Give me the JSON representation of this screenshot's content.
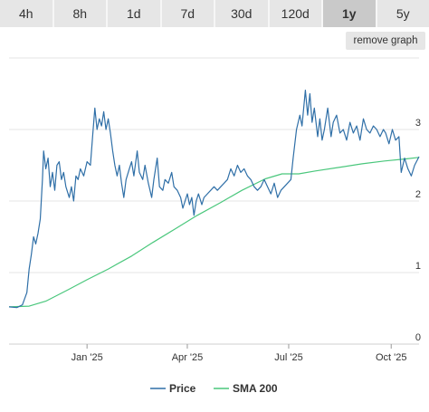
{
  "tabs": [
    {
      "label": "4h",
      "active": false
    },
    {
      "label": "8h",
      "active": false
    },
    {
      "label": "1d",
      "active": false
    },
    {
      "label": "7d",
      "active": false
    },
    {
      "label": "30d",
      "active": false
    },
    {
      "label": "120d",
      "active": false
    },
    {
      "label": "1y",
      "active": true
    },
    {
      "label": "5y",
      "active": false
    }
  ],
  "remove_graph_label": "remove graph",
  "chart_data": {
    "type": "line",
    "xlim": [
      "2024-10-23",
      "2025-10-26"
    ],
    "ylim": [
      0,
      4
    ],
    "grid": true,
    "legend_position": "bottom-center",
    "x_ticks": [
      {
        "label": "Jan '25",
        "date": "2025-01-01"
      },
      {
        "label": "Apr '25",
        "date": "2025-04-01"
      },
      {
        "label": "Jul '25",
        "date": "2025-07-01"
      },
      {
        "label": "Oct '25",
        "date": "2025-10-01"
      }
    ],
    "y_ticks": [
      "0",
      "1",
      "2",
      "3"
    ],
    "y_tick_values": [
      0,
      1,
      2,
      3
    ],
    "series": [
      {
        "name": "Price",
        "color": "#2f6fa7",
        "points": [
          [
            "2024-10-23",
            0.52
          ],
          [
            "2024-10-30",
            0.51
          ],
          [
            "2024-11-04",
            0.55
          ],
          [
            "2024-11-08",
            0.72
          ],
          [
            "2024-11-10",
            1.05
          ],
          [
            "2024-11-12",
            1.25
          ],
          [
            "2024-11-14",
            1.5
          ],
          [
            "2024-11-16",
            1.4
          ],
          [
            "2024-11-18",
            1.55
          ],
          [
            "2024-11-20",
            1.75
          ],
          [
            "2024-11-22",
            2.3
          ],
          [
            "2024-11-23",
            2.7
          ],
          [
            "2024-11-25",
            2.45
          ],
          [
            "2024-11-27",
            2.6
          ],
          [
            "2024-11-29",
            2.2
          ],
          [
            "2024-12-01",
            2.4
          ],
          [
            "2024-12-03",
            2.15
          ],
          [
            "2024-12-05",
            2.5
          ],
          [
            "2024-12-07",
            2.55
          ],
          [
            "2024-12-09",
            2.3
          ],
          [
            "2024-12-11",
            2.4
          ],
          [
            "2024-12-13",
            2.2
          ],
          [
            "2024-12-16",
            2.05
          ],
          [
            "2024-12-18",
            2.2
          ],
          [
            "2024-12-20",
            2.0
          ],
          [
            "2024-12-22",
            2.35
          ],
          [
            "2024-12-24",
            2.3
          ],
          [
            "2024-12-26",
            2.45
          ],
          [
            "2024-12-29",
            2.35
          ],
          [
            "2025-01-01",
            2.55
          ],
          [
            "2025-01-04",
            2.5
          ],
          [
            "2025-01-06",
            2.9
          ],
          [
            "2025-01-08",
            3.3
          ],
          [
            "2025-01-10",
            3.0
          ],
          [
            "2025-01-12",
            3.15
          ],
          [
            "2025-01-14",
            3.05
          ],
          [
            "2025-01-16",
            3.25
          ],
          [
            "2025-01-18",
            3.0
          ],
          [
            "2025-01-20",
            3.15
          ],
          [
            "2025-01-22",
            2.95
          ],
          [
            "2025-01-24",
            2.7
          ],
          [
            "2025-01-26",
            2.5
          ],
          [
            "2025-01-28",
            2.35
          ],
          [
            "2025-01-30",
            2.5
          ],
          [
            "2025-02-01",
            2.25
          ],
          [
            "2025-02-03",
            2.05
          ],
          [
            "2025-02-05",
            2.3
          ],
          [
            "2025-02-08",
            2.45
          ],
          [
            "2025-02-10",
            2.55
          ],
          [
            "2025-02-12",
            2.35
          ],
          [
            "2025-02-15",
            2.7
          ],
          [
            "2025-02-17",
            2.4
          ],
          [
            "2025-02-20",
            2.3
          ],
          [
            "2025-02-22",
            2.5
          ],
          [
            "2025-02-25",
            2.25
          ],
          [
            "2025-02-28",
            2.05
          ],
          [
            "2025-03-02",
            2.3
          ],
          [
            "2025-03-05",
            2.6
          ],
          [
            "2025-03-07",
            2.2
          ],
          [
            "2025-03-10",
            2.15
          ],
          [
            "2025-03-12",
            2.3
          ],
          [
            "2025-03-15",
            2.25
          ],
          [
            "2025-03-18",
            2.4
          ],
          [
            "2025-03-20",
            2.2
          ],
          [
            "2025-03-23",
            2.15
          ],
          [
            "2025-03-26",
            2.05
          ],
          [
            "2025-03-28",
            1.9
          ],
          [
            "2025-04-01",
            2.1
          ],
          [
            "2025-04-03",
            1.95
          ],
          [
            "2025-04-05",
            2.05
          ],
          [
            "2025-04-07",
            1.8
          ],
          [
            "2025-04-09",
            2.0
          ],
          [
            "2025-04-11",
            2.1
          ],
          [
            "2025-04-14",
            1.95
          ],
          [
            "2025-04-16",
            2.05
          ],
          [
            "2025-04-19",
            2.1
          ],
          [
            "2025-04-22",
            2.15
          ],
          [
            "2025-04-25",
            2.2
          ],
          [
            "2025-04-28",
            2.15
          ],
          [
            "2025-05-01",
            2.2
          ],
          [
            "2025-05-04",
            2.25
          ],
          [
            "2025-05-07",
            2.3
          ],
          [
            "2025-05-10",
            2.45
          ],
          [
            "2025-05-13",
            2.35
          ],
          [
            "2025-05-16",
            2.5
          ],
          [
            "2025-05-19",
            2.4
          ],
          [
            "2025-05-22",
            2.45
          ],
          [
            "2025-05-25",
            2.35
          ],
          [
            "2025-05-28",
            2.3
          ],
          [
            "2025-05-31",
            2.2
          ],
          [
            "2025-06-03",
            2.15
          ],
          [
            "2025-06-06",
            2.2
          ],
          [
            "2025-06-09",
            2.3
          ],
          [
            "2025-06-12",
            2.2
          ],
          [
            "2025-06-15",
            2.1
          ],
          [
            "2025-06-18",
            2.25
          ],
          [
            "2025-06-21",
            2.05
          ],
          [
            "2025-06-24",
            2.15
          ],
          [
            "2025-06-27",
            2.2
          ],
          [
            "2025-06-30",
            2.25
          ],
          [
            "2025-07-03",
            2.3
          ],
          [
            "2025-07-05",
            2.6
          ],
          [
            "2025-07-08",
            3.0
          ],
          [
            "2025-07-11",
            3.2
          ],
          [
            "2025-07-13",
            3.05
          ],
          [
            "2025-07-16",
            3.55
          ],
          [
            "2025-07-18",
            3.2
          ],
          [
            "2025-07-20",
            3.5
          ],
          [
            "2025-07-22",
            3.1
          ],
          [
            "2025-07-24",
            3.3
          ],
          [
            "2025-07-27",
            2.9
          ],
          [
            "2025-07-29",
            3.15
          ],
          [
            "2025-07-31",
            2.85
          ],
          [
            "2025-08-02",
            3.0
          ],
          [
            "2025-08-05",
            3.3
          ],
          [
            "2025-08-08",
            2.9
          ],
          [
            "2025-08-10",
            3.1
          ],
          [
            "2025-08-13",
            3.2
          ],
          [
            "2025-08-16",
            2.95
          ],
          [
            "2025-08-19",
            3.0
          ],
          [
            "2025-08-22",
            2.85
          ],
          [
            "2025-08-25",
            3.1
          ],
          [
            "2025-08-28",
            2.95
          ],
          [
            "2025-08-31",
            3.05
          ],
          [
            "2025-09-03",
            2.85
          ],
          [
            "2025-09-06",
            3.15
          ],
          [
            "2025-09-09",
            3.0
          ],
          [
            "2025-09-12",
            2.95
          ],
          [
            "2025-09-15",
            3.05
          ],
          [
            "2025-09-18",
            3.0
          ],
          [
            "2025-09-21",
            2.9
          ],
          [
            "2025-09-24",
            3.0
          ],
          [
            "2025-09-26",
            2.95
          ],
          [
            "2025-09-29",
            2.8
          ],
          [
            "2025-10-02",
            3.0
          ],
          [
            "2025-10-05",
            2.85
          ],
          [
            "2025-10-08",
            2.9
          ],
          [
            "2025-10-10",
            2.4
          ],
          [
            "2025-10-13",
            2.6
          ],
          [
            "2025-10-16",
            2.45
          ],
          [
            "2025-10-19",
            2.35
          ],
          [
            "2025-10-22",
            2.5
          ],
          [
            "2025-10-26",
            2.62
          ]
        ]
      },
      {
        "name": "SMA 200",
        "color": "#4ac77c",
        "points": [
          [
            "2024-10-23",
            0.52
          ],
          [
            "2024-11-10",
            0.53
          ],
          [
            "2024-11-25",
            0.6
          ],
          [
            "2024-12-15",
            0.76
          ],
          [
            "2025-01-01",
            0.9
          ],
          [
            "2025-01-20",
            1.05
          ],
          [
            "2025-02-10",
            1.23
          ],
          [
            "2025-03-01",
            1.42
          ],
          [
            "2025-03-20",
            1.6
          ],
          [
            "2025-04-10",
            1.8
          ],
          [
            "2025-05-01",
            1.98
          ],
          [
            "2025-05-20",
            2.15
          ],
          [
            "2025-06-10",
            2.31
          ],
          [
            "2025-06-25",
            2.38
          ],
          [
            "2025-07-10",
            2.38
          ],
          [
            "2025-07-25",
            2.42
          ],
          [
            "2025-08-15",
            2.47
          ],
          [
            "2025-09-05",
            2.52
          ],
          [
            "2025-09-25",
            2.56
          ],
          [
            "2025-10-15",
            2.59
          ],
          [
            "2025-10-26",
            2.61
          ]
        ]
      }
    ]
  }
}
